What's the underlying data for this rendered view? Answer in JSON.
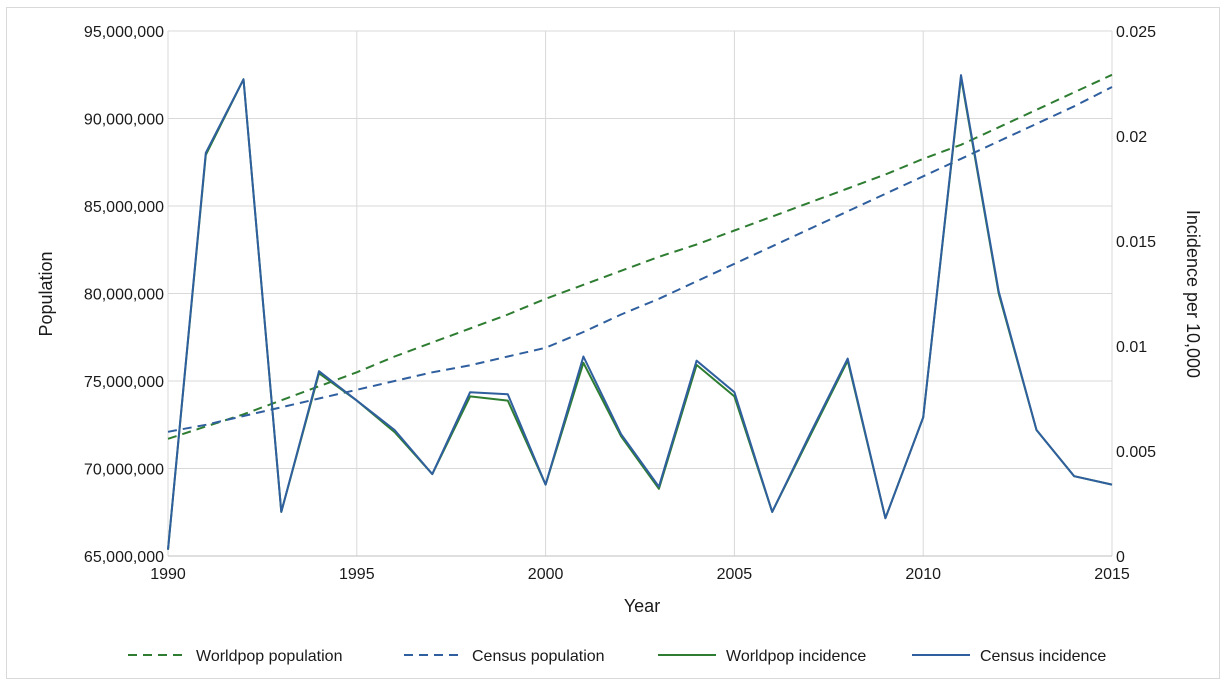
{
  "chart_data": {
    "type": "line",
    "xlabel": "Year",
    "ylabel_left": "Population",
    "ylabel_right": "Incidence per 10,000",
    "xlim": [
      1990,
      2015
    ],
    "ylim_left": [
      65000000,
      95000000
    ],
    "ylim_right": [
      0,
      0.025
    ],
    "x_ticks": [
      1990,
      1995,
      2000,
      2005,
      2010,
      2015
    ],
    "x_tick_labels": [
      "1990",
      "1995",
      "2000",
      "2005",
      "2010",
      "2015"
    ],
    "y_left_ticks": [
      65000000,
      70000000,
      75000000,
      80000000,
      85000000,
      90000000,
      95000000
    ],
    "y_left_tick_labels": [
      "65,000,000",
      "70,000,000",
      "75,000,000",
      "80,000,000",
      "85,000,000",
      "90,000,000",
      "95,000,000"
    ],
    "y_right_ticks": [
      0,
      0.005,
      0.01,
      0.015,
      0.02,
      0.025
    ],
    "y_right_tick_labels": [
      "0",
      "0.005",
      "0.01",
      "0.015",
      "0.02",
      "0.025"
    ],
    "grid": true,
    "legend_position": "bottom",
    "x": [
      1990,
      1991,
      1992,
      1993,
      1994,
      1995,
      1996,
      1997,
      1998,
      1999,
      2000,
      2001,
      2002,
      2003,
      2004,
      2005,
      2006,
      2007,
      2008,
      2009,
      2010,
      2011,
      2012,
      2013,
      2014,
      2015
    ],
    "series": [
      {
        "name": "Worldpop population",
        "axis": "left",
        "style": "dashed",
        "color": "#2e7d32",
        "values": [
          71700000,
          72400000,
          73100000,
          73900000,
          74700000,
          75500000,
          76400000,
          77200000,
          78000000,
          78800000,
          79700000,
          80500000,
          81300000,
          82100000,
          82800000,
          83600000,
          84400000,
          85200000,
          86000000,
          86800000,
          87700000,
          88500000,
          89500000,
          90500000,
          91500000,
          92500000
        ]
      },
      {
        "name": "Census population",
        "axis": "left",
        "style": "dashed",
        "color": "#2f5f9e",
        "values": [
          72100000,
          72500000,
          73000000,
          73500000,
          74000000,
          74500000,
          75000000,
          75500000,
          75900000,
          76400000,
          76900000,
          77800000,
          78800000,
          79700000,
          80700000,
          81700000,
          82700000,
          83700000,
          84700000,
          85700000,
          86700000,
          87700000,
          88700000,
          89700000,
          90700000,
          91800000
        ]
      },
      {
        "name": "Worldpop incidence",
        "axis": "right",
        "style": "solid",
        "color": "#2e7d32",
        "values": [
          0.0003,
          0.0191,
          0.0227,
          0.0021,
          0.0087,
          0.0074,
          0.0059,
          0.0039,
          0.0076,
          0.0074,
          0.0034,
          0.0092,
          0.0057,
          0.0032,
          0.0091,
          0.0076,
          0.0021,
          0.0057,
          0.0093,
          0.0018,
          0.0066,
          0.0228,
          0.0125,
          0.006,
          0.0038,
          0.0034
        ]
      },
      {
        "name": "Census incidence",
        "axis": "right",
        "style": "solid",
        "color": "#2f5f9e",
        "values": [
          0.0003,
          0.0192,
          0.0227,
          0.0021,
          0.0088,
          0.0074,
          0.006,
          0.0039,
          0.0078,
          0.0077,
          0.0034,
          0.0095,
          0.0058,
          0.0033,
          0.0093,
          0.0078,
          0.0021,
          0.0058,
          0.0094,
          0.0018,
          0.0066,
          0.0229,
          0.0126,
          0.006,
          0.0038,
          0.0034
        ]
      }
    ]
  }
}
